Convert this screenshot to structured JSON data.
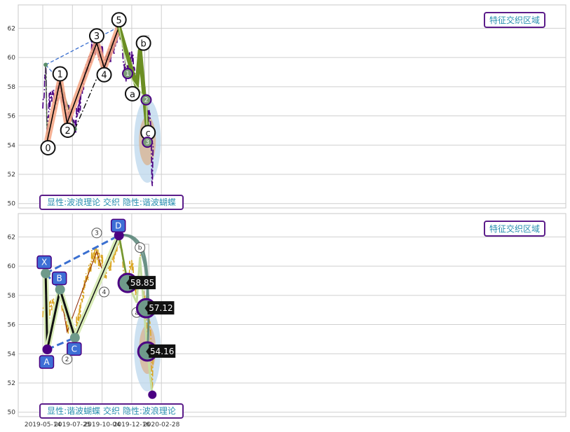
{
  "chart_data": [
    {
      "type": "line",
      "panel": "top",
      "ylim": [
        49.7,
        63.6
      ],
      "yticks": [
        50,
        52,
        54,
        56,
        58,
        60,
        62
      ],
      "grid": true,
      "region_label": "特征交织区域",
      "mode_label": "显性:波浪理论 交织 隐性:谐波蝴蝶",
      "wave_points": [
        {
          "label": "0",
          "x": 11,
          "y": 54.3
        },
        {
          "label": "1",
          "x": 42,
          "y": 58.4
        },
        {
          "label": "2",
          "x": 59,
          "y": 55.5
        },
        {
          "label": "3",
          "x": 131,
          "y": 61.0
        },
        {
          "label": "4",
          "x": 149,
          "y": 59.3
        },
        {
          "label": "5",
          "x": 185,
          "y": 62.1
        },
        {
          "label": "a",
          "x": 228,
          "y": 58.0
        },
        {
          "label": "b",
          "x": 236,
          "y": 60.5
        },
        {
          "label": "c",
          "x": 254,
          "y": 55.0
        }
      ],
      "sub_wave_points": [
        {
          "label": "1",
          "x": 206,
          "y": 58.9
        },
        {
          "label": "2",
          "x": 251,
          "y": 57.1
        },
        {
          "label": "3",
          "x": 254,
          "y": 54.2
        }
      ]
    },
    {
      "type": "line",
      "panel": "bottom",
      "ylim": [
        49.7,
        63.6
      ],
      "yticks": [
        50,
        52,
        54,
        56,
        58,
        60,
        62
      ],
      "xtick_labels": [
        "2019-05-14",
        "2019-07-25",
        "2019-10-04",
        "2019-12-16",
        "2020-02-28"
      ],
      "grid": true,
      "region_label": "特征交织区域",
      "mode_label": "显性:谐波蝴蝶 交织 隐性:波浪理论",
      "harmonic_points": [
        {
          "label": "X",
          "x": 7,
          "y": 59.5
        },
        {
          "label": "A",
          "x": 11,
          "y": 54.3
        },
        {
          "label": "B",
          "x": 42,
          "y": 58.4
        },
        {
          "label": "C",
          "x": 78,
          "y": 55.1
        },
        {
          "label": "D",
          "x": 185,
          "y": 62.1
        }
      ],
      "price_targets": [
        {
          "label": "58.85",
          "x": 206,
          "y": 58.85
        },
        {
          "label": "57.12",
          "x": 251,
          "y": 57.12
        },
        {
          "label": "54.16",
          "x": 254,
          "y": 54.16
        }
      ],
      "wave_points_small": [
        {
          "label": "2",
          "x": 59,
          "y": 54.3
        },
        {
          "label": "3",
          "x": 131,
          "y": 61.6
        },
        {
          "label": "4",
          "x": 149,
          "y": 58.9
        },
        {
          "label": "a",
          "x": 228,
          "y": 57.5
        },
        {
          "label": "b",
          "x": 236,
          "y": 60.6
        }
      ],
      "end_point": {
        "x": 266,
        "y": 51.2
      }
    }
  ],
  "x_tick_values": [
    0,
    72,
    144,
    216,
    288
  ],
  "price_series": {
    "x_start": 0,
    "anchors": [
      [
        0,
        56.5
      ],
      [
        4,
        57.8
      ],
      [
        7,
        59.5
      ],
      [
        9,
        57.2
      ],
      [
        11,
        54.3
      ],
      [
        15,
        57.0
      ],
      [
        20,
        57.3
      ],
      [
        25,
        57.5
      ],
      [
        30,
        56.5
      ],
      [
        35,
        57.6
      ],
      [
        42,
        58.4
      ],
      [
        47,
        57.0
      ],
      [
        53,
        57.4
      ],
      [
        59,
        55.5
      ],
      [
        64,
        56.4
      ],
      [
        70,
        55.9
      ],
      [
        78,
        55.1
      ],
      [
        84,
        56.2
      ],
      [
        92,
        57.2
      ],
      [
        100,
        58.6
      ],
      [
        108,
        59.4
      ],
      [
        116,
        60.2
      ],
      [
        122,
        60.6
      ],
      [
        131,
        61.0
      ],
      [
        138,
        60.2
      ],
      [
        143,
        60.4
      ],
      [
        149,
        59.3
      ],
      [
        156,
        60.1
      ],
      [
        163,
        60.2
      ],
      [
        170,
        60.6
      ],
      [
        177,
        61.0
      ],
      [
        185,
        62.1
      ],
      [
        191,
        61.2
      ],
      [
        197,
        59.5
      ],
      [
        203,
        58.9
      ],
      [
        208,
        59.5
      ],
      [
        214,
        60.0
      ],
      [
        219,
        60.2
      ],
      [
        224,
        58.6
      ],
      [
        228,
        58.0
      ],
      [
        232,
        59.2
      ],
      [
        236,
        60.5
      ],
      [
        241,
        58.5
      ],
      [
        246,
        57.6
      ],
      [
        251,
        57.1
      ],
      [
        254,
        55.0
      ],
      [
        258,
        56.4
      ],
      [
        262,
        55.4
      ],
      [
        266,
        51.2
      ],
      [
        268,
        54.1
      ]
    ]
  },
  "colors": {
    "price_top": "#4b0082",
    "price_bottom": "#daa520",
    "wave_band": "#f4a582",
    "wave_line": "#000000",
    "olive": "#6b8e23",
    "light_green": "#c5dd9f",
    "dashed_blue": "#3a6fd0",
    "node_purple": "#4b0082",
    "label_box": "#3e6fd6",
    "grid": "#cfcfcf",
    "region_blue": "#bcd7ec",
    "region_tan": "#d9b28e",
    "tag_border": "#5b1d8a",
    "tag_text": "#2a8fb0"
  }
}
